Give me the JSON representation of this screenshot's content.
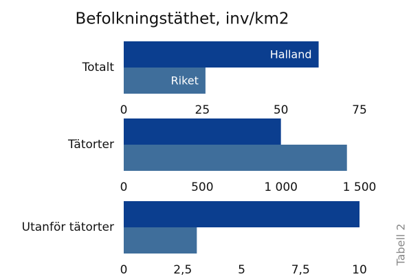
{
  "title": "Befolkningstäthet, inv/km2",
  "side_label": "Tabell 2",
  "chart_data": [
    {
      "type": "bar",
      "orientation": "horizontal",
      "categories": [
        "Totalt"
      ],
      "series": [
        {
          "name": "Halland",
          "color": "#0b3e8f",
          "values": [
            62
          ]
        },
        {
          "name": "Riket",
          "color": "#3f6e9b",
          "values": [
            26
          ]
        }
      ],
      "xlim": [
        0,
        75
      ],
      "xticks": [
        0,
        25,
        50,
        75
      ]
    },
    {
      "type": "bar",
      "orientation": "horizontal",
      "categories": [
        "Tätorter"
      ],
      "series": [
        {
          "color": "#0b3e8f",
          "values": [
            1000
          ]
        },
        {
          "color": "#3f6e9b",
          "values": [
            1420
          ]
        }
      ],
      "xlim": [
        0,
        1500
      ],
      "xticks": [
        0,
        500,
        {
          "value": 1000,
          "label": "1 000"
        },
        {
          "value": 1500,
          "label": "1 500"
        }
      ]
    },
    {
      "type": "bar",
      "orientation": "horizontal",
      "categories": [
        "Utanför tätorter"
      ],
      "series": [
        {
          "color": "#0b3e8f",
          "values": [
            10
          ]
        },
        {
          "color": "#3f6e9b",
          "values": [
            3.1
          ]
        }
      ],
      "xlim": [
        0,
        10
      ],
      "xticks": [
        0,
        {
          "value": 2.5,
          "label": "2,5"
        },
        5,
        {
          "value": 7.5,
          "label": "7,5"
        },
        10
      ]
    }
  ]
}
